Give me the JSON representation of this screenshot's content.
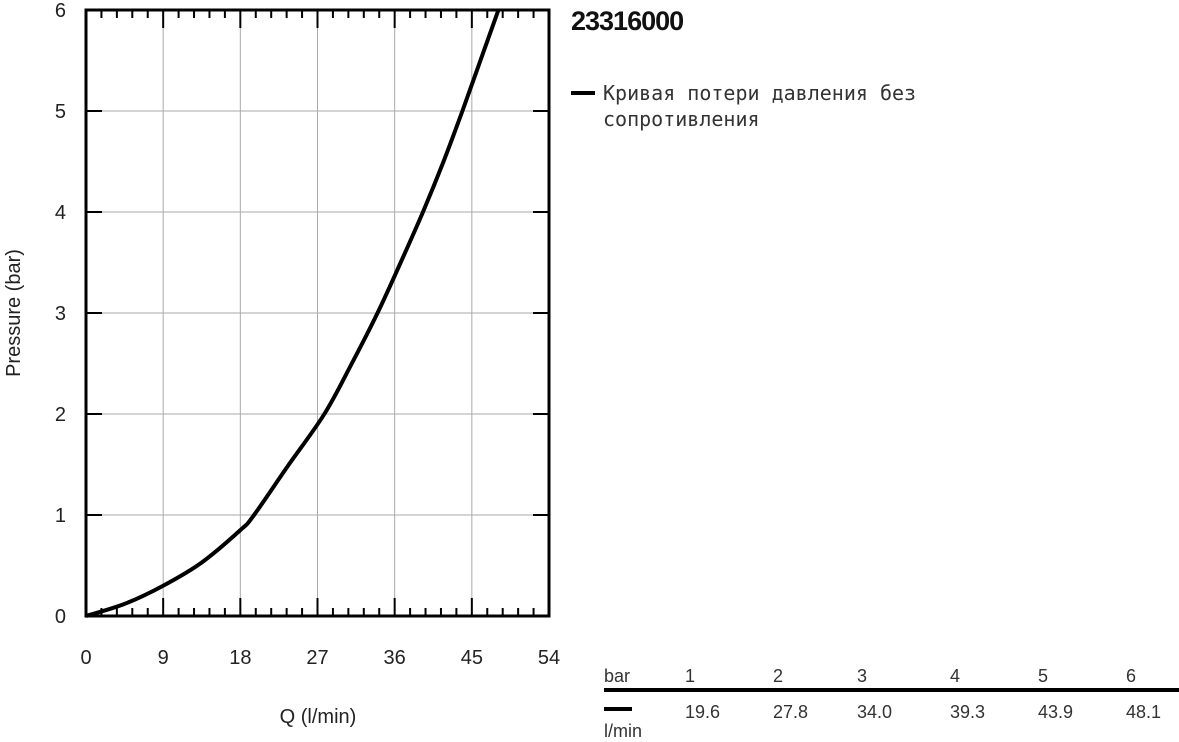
{
  "title": "23316000",
  "legend": {
    "label": "Кривая потери давления без сопротивления",
    "color": "#000000"
  },
  "chart_data": {
    "type": "line",
    "xlabel": "Q (l/min)",
    "ylabel": "Pressure (bar)",
    "xlim": [
      0,
      54
    ],
    "ylim": [
      0,
      6
    ],
    "xticks": [
      "0",
      "9",
      "18",
      "27",
      "36",
      "45",
      "54"
    ],
    "yticks": [
      "0",
      "1",
      "2",
      "3",
      "4",
      "5",
      "6"
    ],
    "grid": true,
    "series": [
      {
        "name": "Кривая потери давления без сопротивления",
        "color": "#000000",
        "x": [
          0,
          4.5,
          9,
          13.5,
          18,
          19.6,
          23.5,
          27.8,
          31,
          34,
          36.7,
          39.3,
          41.7,
          43.9,
          46,
          48.1
        ],
        "y": [
          0,
          0.12,
          0.3,
          0.53,
          0.85,
          1,
          1.48,
          2,
          2.5,
          3,
          3.5,
          4,
          4.5,
          5,
          5.5,
          6
        ]
      }
    ]
  },
  "table": {
    "header_unit": "bar",
    "value_unit": "l/min",
    "pressures": [
      "1",
      "2",
      "3",
      "4",
      "5",
      "6"
    ],
    "flows": [
      "19.6",
      "27.8",
      "34.0",
      "39.3",
      "43.9",
      "48.1"
    ]
  }
}
